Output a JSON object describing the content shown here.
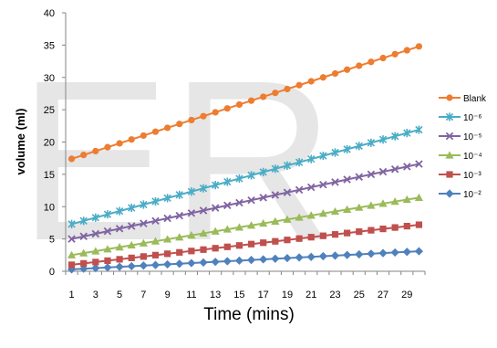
{
  "chart_data": {
    "type": "line",
    "title": "",
    "xlabel": "Time (mins)",
    "ylabel": "volume (ml)",
    "ylim": [
      0,
      40
    ],
    "y_ticks": [
      0,
      5,
      10,
      15,
      20,
      25,
      30,
      35,
      40
    ],
    "x_range": [
      1,
      30
    ],
    "x_tick_labels": [
      "1",
      "3",
      "5",
      "7",
      "9",
      "11",
      "13",
      "15",
      "17",
      "19",
      "21",
      "23",
      "25",
      "27",
      "29"
    ],
    "grid": false,
    "legend_position": "right",
    "watermark": "ER",
    "series": [
      {
        "name": "Blank",
        "color": "#ED7D31",
        "marker": "circle",
        "start": 17.4,
        "end": 34.8
      },
      {
        "name": "10⁻⁶",
        "color": "#4BACC6",
        "marker": "star",
        "start": 7.3,
        "end": 21.9
      },
      {
        "name": "10⁻⁵",
        "color": "#8064A2",
        "marker": "x",
        "start": 5.0,
        "end": 16.6
      },
      {
        "name": "10⁻⁴",
        "color": "#9BBB59",
        "marker": "triangle",
        "start": 2.5,
        "end": 11.4
      },
      {
        "name": "10⁻³",
        "color": "#C0504D",
        "marker": "square",
        "start": 1.0,
        "end": 7.2
      },
      {
        "name": "10⁻²",
        "color": "#4F81BD",
        "marker": "diamond",
        "start": 0.3,
        "end": 3.1
      }
    ]
  }
}
